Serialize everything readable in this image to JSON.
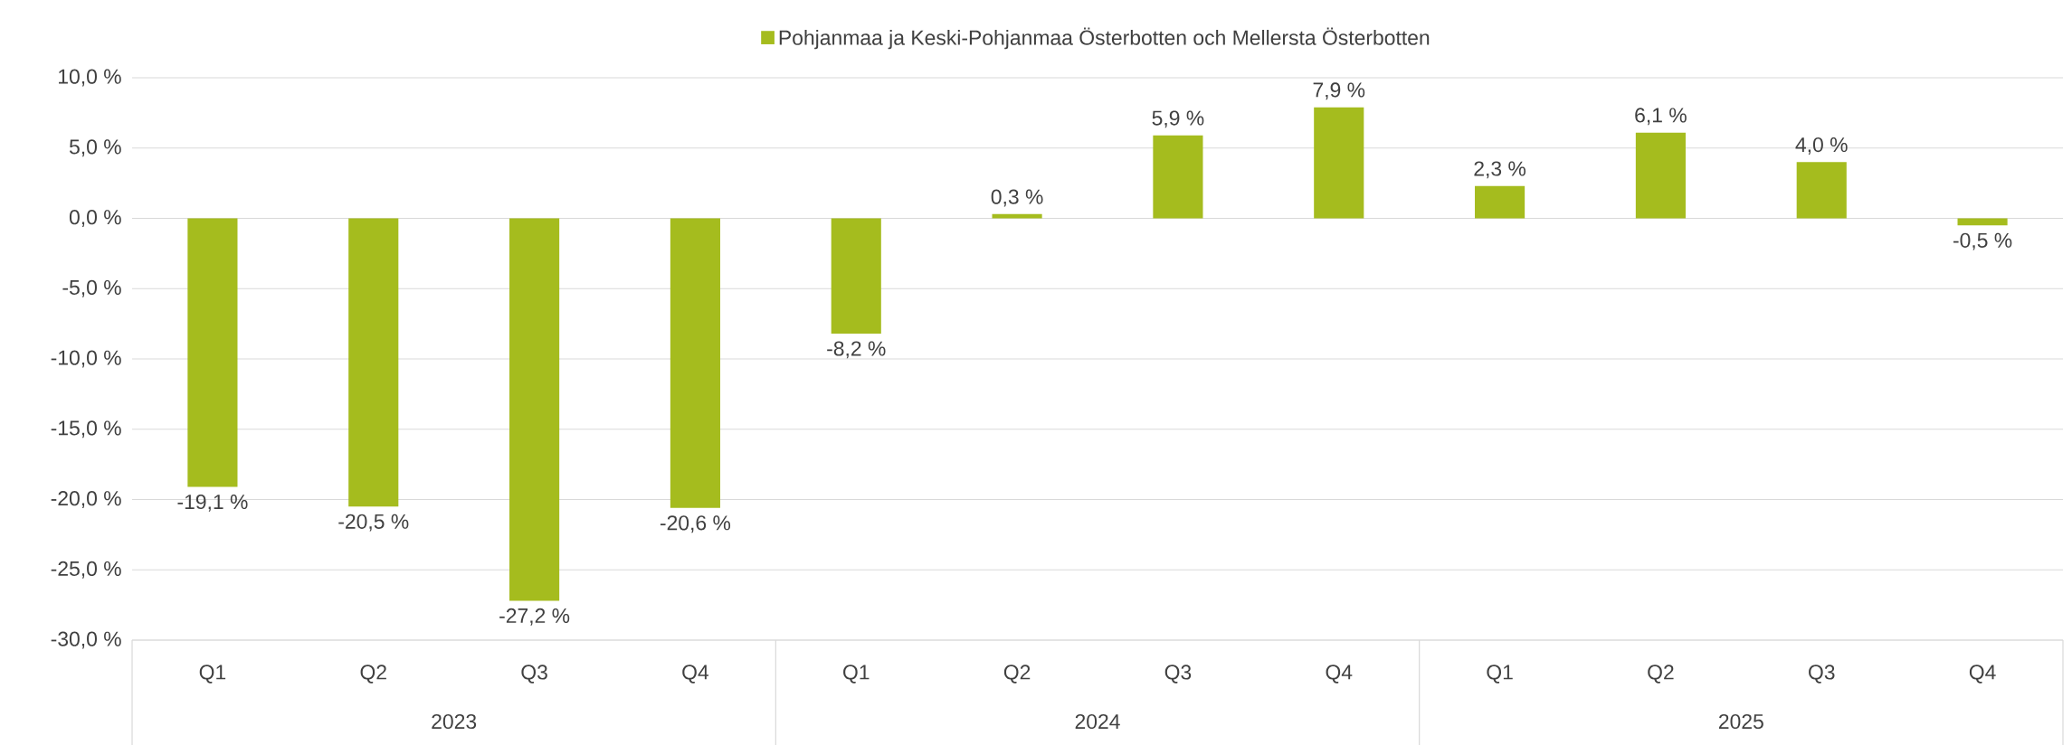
{
  "chart_data": {
    "type": "bar",
    "categories": [
      "Q1",
      "Q2",
      "Q3",
      "Q4",
      "Q1",
      "Q2",
      "Q3",
      "Q4",
      "Q1",
      "Q2",
      "Q3",
      "Q4"
    ],
    "series": [
      {
        "name": "Pohjanmaa ja Keski-Pohjanmaa Österbotten och Mellersta Österbotten",
        "color": "#a5bc1e",
        "values": [
          -19.1,
          -20.5,
          -27.2,
          -20.6,
          -8.2,
          0.3,
          5.9,
          7.9,
          2.3,
          6.1,
          4.0,
          -0.5
        ],
        "value_labels": [
          "-19,1 %",
          "-20,5 %",
          "-27,2 %",
          "-20,6 %",
          "-8,2 %",
          "0,3 %",
          "5,9 %",
          "7,9 %",
          "2,3 %",
          "6,1 %",
          "4,0 %",
          "-0,5 %"
        ]
      }
    ],
    "annotations": [
      "2023",
      "2024",
      "2025"
    ],
    "ylim": [
      -30,
      10
    ],
    "yticks": [
      {
        "value": -30,
        "label": "-30,0 %"
      },
      {
        "value": -25,
        "label": "-25,0 %"
      },
      {
        "value": -20,
        "label": "-20,0 %"
      },
      {
        "value": -15,
        "label": "-15,0 %"
      },
      {
        "value": -10,
        "label": "-10,0 %"
      },
      {
        "value": -5,
        "label": "-5,0 %"
      },
      {
        "value": 0,
        "label": "0,0 %"
      },
      {
        "value": 5,
        "label": "5,0 %"
      },
      {
        "value": 10,
        "label": "10,0 %"
      }
    ],
    "grid": "y",
    "legend": "top"
  }
}
